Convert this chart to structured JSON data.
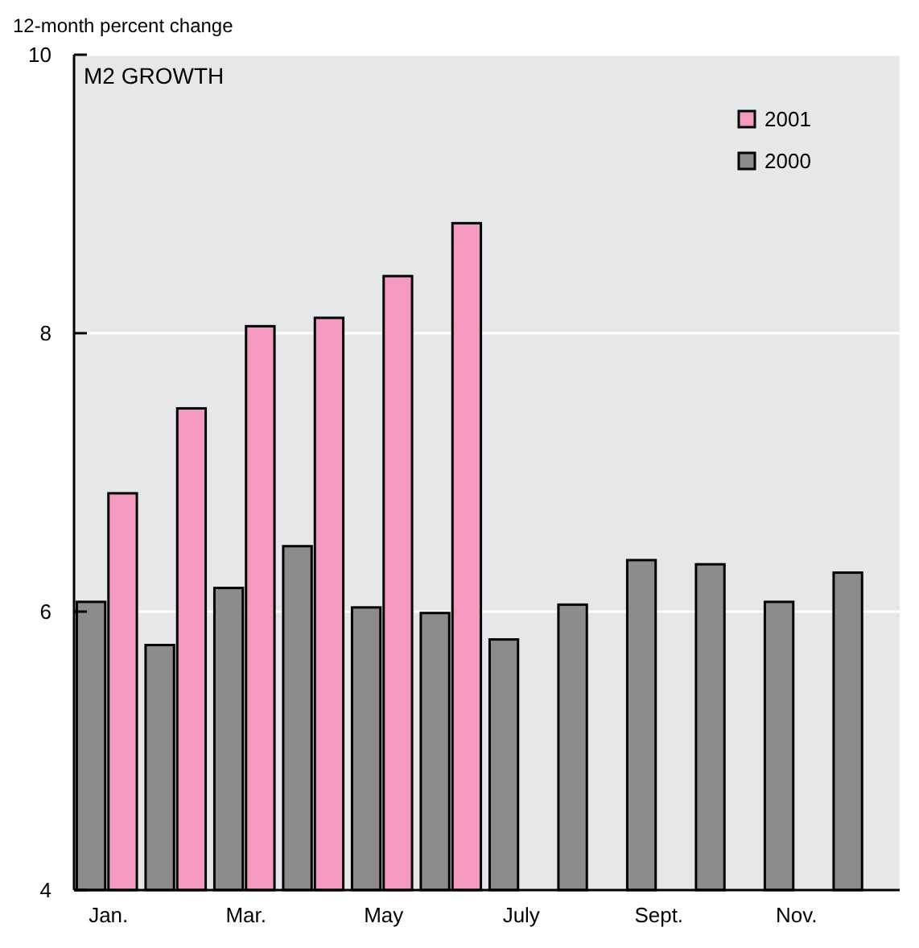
{
  "chart_data": {
    "type": "bar",
    "title": "M2 GROWTH",
    "ylabel": "12-month percent change",
    "categories": [
      "Jan.",
      null,
      "Mar.",
      null,
      "May",
      null,
      "July",
      null,
      "Sept.",
      null,
      "Nov.",
      null
    ],
    "series": [
      {
        "name": "2000",
        "color": "#8c8c8c",
        "values": [
          6.07,
          5.76,
          6.17,
          6.47,
          6.03,
          5.99,
          5.8,
          6.05,
          6.37,
          6.34,
          6.07,
          6.28
        ]
      },
      {
        "name": "2001",
        "color": "#f49ac1",
        "values": [
          6.85,
          7.46,
          8.05,
          8.11,
          8.41,
          8.79,
          null,
          null,
          null,
          null,
          null,
          null
        ]
      }
    ],
    "ylim": [
      4,
      10
    ],
    "yticks": [
      4,
      6,
      8,
      10
    ],
    "grid": "y",
    "legend": "top right"
  }
}
